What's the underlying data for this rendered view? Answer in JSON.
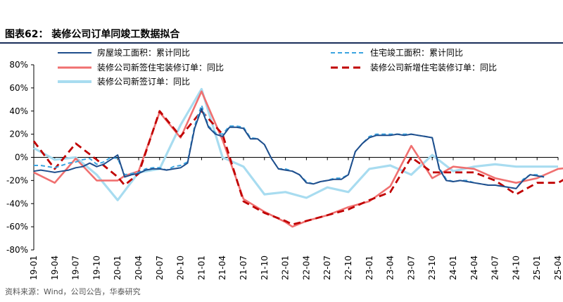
{
  "figure": {
    "title": "图表62：  装修公司订单同竣工数据拟合",
    "source": "资料来源：Wind，公司公告，华泰研究"
  },
  "chart_data": {
    "type": "line",
    "title": "",
    "xlabel": "",
    "ylabel": "",
    "ylim": [
      -80,
      80
    ],
    "y_ticks": [
      "80%",
      "60%",
      "40%",
      "20%",
      "0%",
      "-20%",
      "-40%",
      "-60%",
      "-80%"
    ],
    "y_tick_values": [
      80,
      60,
      40,
      20,
      0,
      -20,
      -40,
      -60,
      -80
    ],
    "x_ticks": [
      "19-01",
      "19-04",
      "19-07",
      "19-10",
      "20-01",
      "20-04",
      "20-07",
      "20-10",
      "21-01",
      "21-04",
      "21-07",
      "21-10",
      "22-01",
      "22-04",
      "22-07",
      "22-10",
      "23-01",
      "23-04",
      "23-07",
      "23-10",
      "24-01",
      "24-04",
      "24-07",
      "24-10",
      "25-01",
      "25-04"
    ],
    "grid": false,
    "legend": "top",
    "series": [
      {
        "name": "房屋竣工面积：累计同比",
        "color": "#1f4e8c",
        "style": "solid",
        "points": [
          [
            0,
            -12
          ],
          [
            1,
            -11
          ],
          [
            2,
            -12
          ],
          [
            3,
            -13
          ],
          [
            4,
            -12
          ],
          [
            5,
            -11
          ],
          [
            6,
            -9
          ],
          [
            7,
            -8
          ],
          [
            8,
            -5
          ],
          [
            9,
            -8
          ],
          [
            10,
            -6
          ],
          [
            11,
            -2
          ],
          [
            12,
            2
          ],
          [
            13,
            -17
          ],
          [
            14,
            -15
          ],
          [
            15,
            -14
          ],
          [
            16,
            -11
          ],
          [
            17,
            -10
          ],
          [
            18,
            -10
          ],
          [
            19,
            -11
          ],
          [
            20,
            -10
          ],
          [
            21,
            -9
          ],
          [
            22,
            -5
          ],
          [
            23,
            25
          ],
          [
            24,
            42
          ],
          [
            25,
            26
          ],
          [
            26,
            20
          ],
          [
            27,
            18
          ],
          [
            28,
            26
          ],
          [
            29,
            26
          ],
          [
            30,
            25
          ],
          [
            31,
            16
          ],
          [
            32,
            16
          ],
          [
            33,
            11
          ],
          [
            34,
            -1
          ],
          [
            35,
            -10
          ],
          [
            36,
            -11
          ],
          [
            37,
            -12
          ],
          [
            38,
            -15
          ],
          [
            39,
            -22
          ],
          [
            40,
            -23
          ],
          [
            41,
            -21
          ],
          [
            42,
            -20
          ],
          [
            43,
            -19
          ],
          [
            44,
            -19
          ],
          [
            45,
            -15
          ],
          [
            46,
            5
          ],
          [
            47,
            12
          ],
          [
            48,
            17
          ],
          [
            49,
            19
          ],
          [
            50,
            19
          ],
          [
            51,
            19
          ],
          [
            52,
            20
          ],
          [
            53,
            19
          ],
          [
            54,
            20
          ],
          [
            55,
            19
          ],
          [
            56,
            18
          ],
          [
            57,
            17
          ],
          [
            58,
            -10
          ],
          [
            59,
            -20
          ],
          [
            60,
            -21
          ],
          [
            61,
            -20
          ],
          [
            62,
            -21
          ],
          [
            63,
            -22
          ],
          [
            64,
            -23
          ],
          [
            65,
            -24
          ],
          [
            66,
            -24
          ],
          [
            67,
            -25
          ],
          [
            68,
            -26
          ],
          [
            69,
            -27
          ],
          [
            70,
            -20
          ],
          [
            71,
            -15
          ],
          [
            72,
            -16
          ],
          [
            73,
            -17
          ]
        ]
      },
      {
        "name": "住宅竣工面积：累计同比",
        "color": "#3ba4e0",
        "style": "dashed",
        "points": [
          [
            0,
            -7
          ],
          [
            1,
            -7
          ],
          [
            2,
            -8
          ],
          [
            3,
            -9
          ],
          [
            4,
            -7
          ],
          [
            5,
            -5
          ],
          [
            6,
            -4
          ],
          [
            7,
            -2
          ],
          [
            8,
            -1
          ],
          [
            9,
            -6
          ],
          [
            10,
            -4
          ],
          [
            11,
            0
          ],
          [
            12,
            -1
          ],
          [
            13,
            -15
          ],
          [
            14,
            -14
          ],
          [
            15,
            -13
          ],
          [
            16,
            -10
          ],
          [
            17,
            -9
          ],
          [
            18,
            -9
          ],
          [
            19,
            -11
          ],
          [
            20,
            -8
          ],
          [
            21,
            -7
          ],
          [
            22,
            -4
          ],
          [
            23,
            27
          ],
          [
            24,
            45
          ],
          [
            25,
            27
          ],
          [
            26,
            21
          ],
          [
            27,
            20
          ],
          [
            28,
            27
          ],
          [
            29,
            27
          ],
          [
            30,
            26
          ],
          [
            31,
            17
          ],
          [
            32,
            16
          ],
          [
            33,
            11
          ],
          [
            34,
            -1
          ],
          [
            35,
            -10
          ],
          [
            36,
            -10
          ],
          [
            37,
            -12
          ],
          [
            38,
            -15
          ],
          [
            39,
            -21
          ],
          [
            40,
            -23
          ],
          [
            41,
            -21
          ],
          [
            42,
            -20
          ],
          [
            43,
            -18
          ],
          [
            44,
            -18
          ],
          [
            45,
            -15
          ],
          [
            46,
            5
          ],
          [
            47,
            12
          ],
          [
            48,
            18
          ],
          [
            49,
            20
          ],
          [
            50,
            20
          ],
          [
            51,
            20
          ],
          [
            52,
            20
          ],
          [
            53,
            20
          ],
          [
            54,
            20
          ],
          [
            55,
            19
          ],
          [
            56,
            18
          ],
          [
            57,
            17
          ],
          [
            58,
            -9
          ],
          [
            59,
            -19
          ],
          [
            60,
            -21
          ],
          [
            61,
            -20
          ],
          [
            62,
            -20
          ],
          [
            63,
            -22
          ],
          [
            64,
            -23
          ],
          [
            65,
            -24
          ],
          [
            66,
            -24
          ],
          [
            67,
            -25
          ],
          [
            68,
            -26
          ],
          [
            69,
            -27
          ],
          [
            70,
            -19
          ],
          [
            71,
            -15
          ],
          [
            72,
            -15
          ],
          [
            73,
            -17
          ]
        ]
      },
      {
        "name": "装修公司新签住宅装修订单：同比",
        "color": "#f07070",
        "style": "solid",
        "points": [
          [
            0,
            -13
          ],
          [
            3,
            -22
          ],
          [
            6,
            -1
          ],
          [
            9,
            -20
          ],
          [
            12,
            -20
          ],
          [
            13,
            -16
          ],
          [
            15,
            -12
          ],
          [
            18,
            39
          ],
          [
            21,
            17
          ],
          [
            24,
            57
          ],
          [
            27,
            15
          ],
          [
            30,
            -36
          ],
          [
            33,
            -47
          ],
          [
            36,
            -56
          ],
          [
            37,
            -60
          ],
          [
            39,
            -55
          ],
          [
            42,
            -50
          ],
          [
            45,
            -43
          ],
          [
            48,
            -38
          ],
          [
            51,
            -25
          ],
          [
            54,
            10
          ],
          [
            57,
            -18
          ],
          [
            60,
            -8
          ],
          [
            63,
            -10
          ],
          [
            66,
            -18
          ],
          [
            69,
            -22
          ],
          [
            72,
            -18
          ],
          [
            75,
            -10
          ],
          [
            78,
            -8
          ]
        ]
      },
      {
        "name": "装修公司新增住宅装修订单：同比",
        "color": "#c00000",
        "style": "dashed",
        "points": [
          [
            0,
            14
          ],
          [
            3,
            -10
          ],
          [
            6,
            12
          ],
          [
            9,
            -2
          ],
          [
            12,
            -17
          ],
          [
            13,
            -24
          ],
          [
            15,
            -14
          ],
          [
            18,
            40
          ],
          [
            21,
            18
          ],
          [
            24,
            40
          ],
          [
            27,
            20
          ],
          [
            30,
            -38
          ],
          [
            33,
            -48
          ],
          [
            36,
            -55
          ],
          [
            37,
            -58
          ],
          [
            39,
            -55
          ],
          [
            42,
            -50
          ],
          [
            45,
            -45
          ],
          [
            48,
            -37
          ],
          [
            51,
            -30
          ],
          [
            54,
            0
          ],
          [
            57,
            -13
          ],
          [
            60,
            -13
          ],
          [
            63,
            -13
          ],
          [
            66,
            -20
          ],
          [
            69,
            -32
          ],
          [
            72,
            -22
          ],
          [
            75,
            -22
          ],
          [
            78,
            -12
          ]
        ]
      },
      {
        "name": "装修公司新签订单：同比",
        "color": "#a8dcf0",
        "style": "solid",
        "points": [
          [
            0,
            8
          ],
          [
            3,
            -2
          ],
          [
            6,
            0
          ],
          [
            9,
            -15
          ],
          [
            12,
            -37
          ],
          [
            15,
            -13
          ],
          [
            18,
            -10
          ],
          [
            21,
            28
          ],
          [
            24,
            59
          ],
          [
            27,
            0
          ],
          [
            30,
            -8
          ],
          [
            33,
            -32
          ],
          [
            36,
            -30
          ],
          [
            39,
            -35
          ],
          [
            42,
            -26
          ],
          [
            45,
            -30
          ],
          [
            48,
            -10
          ],
          [
            51,
            -7
          ],
          [
            54,
            -15
          ],
          [
            57,
            2
          ],
          [
            60,
            -12
          ],
          [
            63,
            -8
          ],
          [
            66,
            -6
          ],
          [
            69,
            -8
          ],
          [
            72,
            -8
          ],
          [
            75,
            -8
          ]
        ]
      }
    ]
  }
}
